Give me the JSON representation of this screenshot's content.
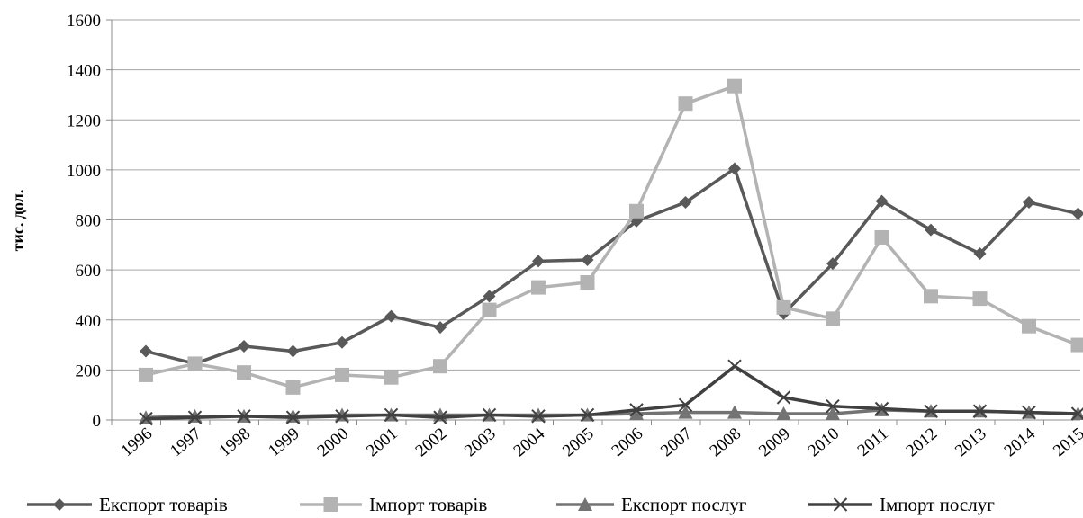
{
  "chart_data": {
    "type": "line",
    "title": "",
    "xlabel": "",
    "ylabel": "тис. дол.",
    "ylim": [
      0,
      1600
    ],
    "yticks": [
      0,
      200,
      400,
      600,
      800,
      1000,
      1200,
      1400,
      1600
    ],
    "grid": "horizontal",
    "legend_position": "bottom",
    "categories": [
      "1996",
      "1997",
      "1998",
      "1999",
      "2000",
      "2001",
      "2002",
      "2003",
      "2004",
      "2005",
      "2006",
      "2007",
      "2008",
      "2009",
      "2010",
      "2011",
      "2012",
      "2013",
      "2014",
      "2015"
    ],
    "series": [
      {
        "name": "Експорт товарів",
        "color": "#595959",
        "marker": "diamond",
        "values": [
          275,
          225,
          295,
          275,
          310,
          415,
          370,
          495,
          635,
          640,
          795,
          870,
          1005,
          425,
          625,
          875,
          760,
          665,
          870,
          825
        ]
      },
      {
        "name": "Імпорт товарів",
        "color": "#b3b3b3",
        "marker": "square",
        "values": [
          180,
          225,
          190,
          130,
          180,
          170,
          215,
          440,
          530,
          550,
          835,
          1265,
          1335,
          450,
          405,
          730,
          495,
          485,
          375,
          300
        ]
      },
      {
        "name": "Експорт послуг",
        "color": "#737373",
        "marker": "triangle",
        "values": [
          10,
          15,
          15,
          15,
          20,
          20,
          20,
          20,
          20,
          20,
          25,
          30,
          30,
          25,
          25,
          40,
          35,
          35,
          30,
          25
        ]
      },
      {
        "name": "Імпорт послуг",
        "color": "#404040",
        "marker": "x",
        "values": [
          5,
          10,
          15,
          10,
          15,
          20,
          10,
          20,
          15,
          20,
          40,
          60,
          215,
          90,
          55,
          45,
          35,
          35,
          30,
          25
        ]
      }
    ]
  }
}
